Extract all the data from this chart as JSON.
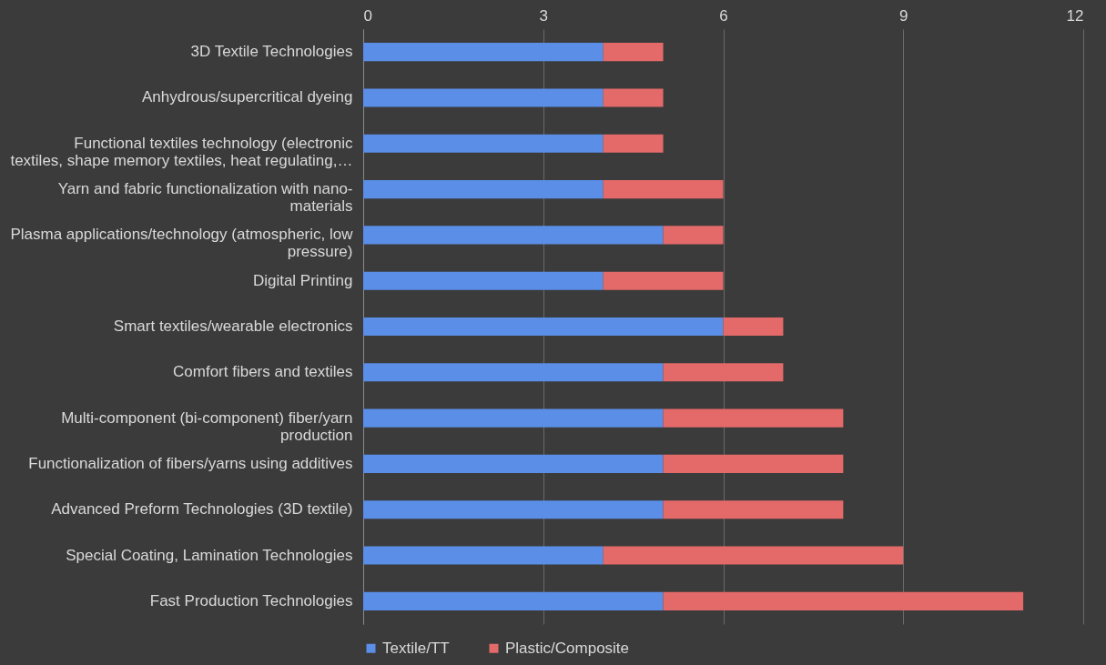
{
  "chart_data": {
    "type": "bar",
    "orientation": "horizontal",
    "stacked": true,
    "categories": [
      "3D Textile Technologies",
      "Anhydrous/supercritical dyeing",
      "Functional textiles technology (electronic textiles, shape memory textiles, heat regulating,…",
      "Yarn and fabric functionalization with nano-materials",
      "Plasma applications/technology (atmospheric, low pressure)",
      "Digital Printing",
      "Smart textiles/wearable electronics",
      "Comfort fibers and textiles",
      "Multi-component (bi-component) fiber/yarn production",
      "Functionalization of fibers/yarns using additives",
      "Advanced Preform Technologies (3D textile)",
      "Special Coating, Lamination Technologies",
      "Fast Production Technologies"
    ],
    "series": [
      {
        "name": "Textile/TT",
        "color": "#5b8ee6",
        "values": [
          4,
          4,
          4,
          4,
          5,
          4,
          6,
          5,
          5,
          5,
          5,
          4,
          5
        ]
      },
      {
        "name": "Plastic/Composite",
        "color": "#e46a6a",
        "values": [
          1,
          1,
          1,
          2,
          1,
          2,
          1,
          2,
          3,
          3,
          3,
          5,
          6
        ]
      }
    ],
    "xlim": [
      0,
      12
    ],
    "xticks": [
      0,
      3,
      6,
      9,
      12
    ],
    "grid": "x",
    "legend": "bottom"
  }
}
